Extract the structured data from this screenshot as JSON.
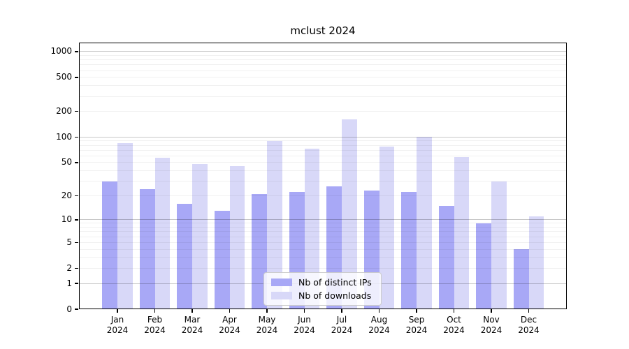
{
  "chart_data": {
    "type": "bar",
    "title": "mclust 2024",
    "categories": [
      "Jan",
      "Feb",
      "Mar",
      "Apr",
      "May",
      "Jun",
      "Jul",
      "Aug",
      "Sep",
      "Oct",
      "Nov",
      "Dec"
    ],
    "x_tick_year": "2024",
    "series": [
      {
        "name": "Nb of distinct IPs",
        "color": "#a8a8f6",
        "values": [
          30,
          24,
          16,
          13,
          21,
          22,
          26,
          23,
          22,
          15,
          9,
          4
        ]
      },
      {
        "name": "Nb of downloads",
        "color": "#d8d8f8",
        "values": [
          85,
          57,
          48,
          45,
          90,
          73,
          160,
          78,
          100,
          58,
          30,
          11
        ]
      }
    ],
    "y_axis": {
      "scale": "log1p",
      "tick_values": [
        0,
        1,
        2,
        5,
        10,
        20,
        50,
        100,
        200,
        500,
        1000
      ],
      "max_value": 1270,
      "min_value": 0
    },
    "grid": {
      "on": true,
      "major_values": [
        1,
        10,
        100,
        1000
      ],
      "minor_values": [
        2,
        3,
        4,
        5,
        6,
        7,
        8,
        9,
        20,
        30,
        40,
        50,
        60,
        70,
        80,
        90,
        200,
        300,
        400,
        500,
        600,
        700,
        800,
        900
      ],
      "major_color": "rgba(0,0,0,0.22)",
      "minor_color": "rgba(0,0,0,0.055)"
    },
    "legend": {
      "position": "lower center",
      "entries": [
        "Nb of distinct IPs",
        "Nb of downloads"
      ]
    }
  }
}
